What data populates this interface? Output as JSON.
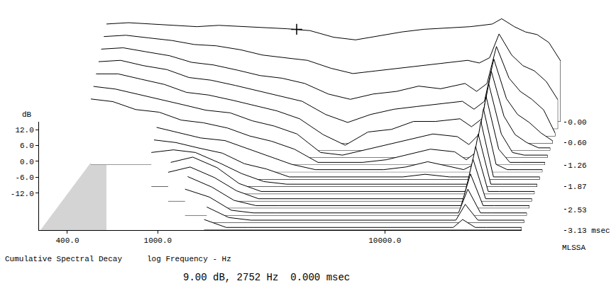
{
  "chart_data": {
    "type": "waterfall",
    "title": "Cumulative Spectral Decay",
    "xlabel": "log Frequency - Hz",
    "ylabel": "dB",
    "readout": "9.00 dB, 2752 Hz  0.000 msec",
    "annotation": "MLSSA",
    "log": "x",
    "grid": false,
    "color": "#000000",
    "xlim": [
      300,
      40000
    ],
    "xticks": [
      {
        "value": 400,
        "label": "400.0"
      },
      {
        "value": 1000,
        "label": "1000.0"
      },
      {
        "value": 10000,
        "label": "10000.0"
      }
    ],
    "ylim": [
      -26,
      15
    ],
    "yticks": [
      {
        "value": 12,
        "label": "12.0"
      },
      {
        "value": 6,
        "label": "6.0"
      },
      {
        "value": 0,
        "label": "0.0"
      },
      {
        "value": -6,
        "label": "-6.0"
      },
      {
        "value": -12,
        "label": "-12.0"
      }
    ],
    "zlim": [
      0,
      3.13
    ],
    "zticks": [
      {
        "value": 0,
        "label": "0.00"
      },
      {
        "value": 0.6,
        "label": "0.60"
      },
      1.26,
      1.87,
      2.53,
      {
        "value": 3.13,
        "label": "3.13 msec"
      }
    ],
    "cursor": {
      "x": 2752,
      "y": 9.0,
      "time": 0
    },
    "x": [
      400,
      500,
      630,
      800,
      1000,
      1250,
      1600,
      2000,
      2500,
      3150,
      4000,
      5000,
      6300,
      8000,
      10000,
      12500,
      16000,
      18000,
      20000,
      22000,
      25000,
      28000,
      31500,
      35500,
      40000
    ],
    "slices": [
      {
        "time": 0,
        "values": [
          11,
          11.5,
          11,
          10.5,
          10,
          10.5,
          10,
          9.5,
          9.2,
          8.5,
          6,
          5,
          6.5,
          8,
          9,
          9.5,
          10,
          10.5,
          11,
          13,
          10,
          8,
          7,
          4,
          -3
        ]
      },
      {
        "time": 0.21,
        "values": [
          9,
          9.5,
          8.5,
          7.5,
          6,
          5.5,
          4,
          2,
          1,
          0,
          -3,
          -5,
          -4,
          -3,
          -2,
          -1,
          0,
          -1,
          1,
          10,
          2,
          -2,
          -4,
          -8,
          -15
        ]
      },
      {
        "time": 0.42,
        "values": [
          7,
          7.5,
          6,
          4.5,
          2,
          1,
          -1,
          -3,
          -4,
          -6,
          -10,
          -12,
          -10,
          -9,
          -7,
          -8,
          -6,
          -9,
          -6,
          8,
          -4,
          -9,
          -12,
          -16,
          -25
        ]
      },
      {
        "time": 0.63,
        "values": [
          5,
          5.5,
          3.5,
          2,
          -1,
          -2,
          -4,
          -6,
          -8,
          -10,
          -15,
          -18,
          -15,
          -13,
          -12,
          -11,
          -10,
          -13,
          -10,
          6,
          -9,
          -15,
          -18,
          -22,
          -25
        ]
      },
      {
        "time": 0.83,
        "values": [
          3,
          3,
          1,
          -1,
          -4,
          -5,
          -7,
          -9,
          -11,
          -14,
          -20,
          -24,
          -19,
          -18,
          -15,
          -15,
          -14,
          -17,
          -14,
          4,
          -13,
          -20,
          -23,
          -25,
          -25
        ]
      },
      {
        "time": 1.04,
        "values": [
          1,
          0,
          -2,
          -4,
          -6,
          -8,
          -9,
          -12,
          -14,
          -17,
          -24,
          -25,
          -23,
          -21,
          -19,
          -17,
          -18,
          -21,
          -17,
          2,
          -17,
          -24,
          -25,
          -25,
          -25
        ]
      },
      {
        "time": 1.25,
        "values": [
          -1,
          -2,
          -5,
          -6,
          -9,
          -10,
          -12,
          -15,
          -17,
          -20,
          -25,
          -25,
          -25,
          -24,
          -22,
          -20,
          -21,
          -24,
          -21,
          0,
          -20,
          -25,
          -25,
          -25,
          -25
        ]
      },
      {
        "time": 1.46,
        "values": [
          null,
          null,
          null,
          -9,
          -11,
          -13,
          -14,
          -17,
          -20,
          -23,
          -25,
          -25,
          -25,
          -25,
          -24,
          -22,
          -24,
          -25,
          -23,
          -2,
          -23,
          -25,
          -25,
          -25,
          -25
        ]
      },
      {
        "time": 1.67,
        "values": [
          null,
          null,
          null,
          -11,
          -12,
          -14,
          -16,
          -20,
          -22,
          -25,
          -25,
          -25,
          -25,
          -25,
          -25,
          -24,
          -25,
          -25,
          -25,
          -4,
          -25,
          -25,
          -25,
          -25,
          -25
        ]
      },
      {
        "time": 1.88,
        "values": [
          null,
          null,
          null,
          -13,
          -12,
          -13,
          -17,
          -21,
          -24,
          -25,
          -25,
          -25,
          -25,
          -25,
          -25,
          -25,
          -25,
          -25,
          -25,
          -6,
          -25,
          -25,
          -25,
          -25,
          -25
        ]
      },
      {
        "time": 2.09,
        "values": [
          null,
          null,
          null,
          null,
          -14,
          -12,
          -16,
          -22,
          -25,
          -25,
          -25,
          -25,
          -25,
          -25,
          -25,
          -25,
          -25,
          -25,
          -25,
          -8,
          -25,
          -25,
          -25,
          -25,
          -25
        ]
      },
      {
        "time": 2.3,
        "values": [
          null,
          null,
          null,
          null,
          -15,
          -13,
          -17,
          -22,
          -25,
          -25,
          -25,
          -25,
          -25,
          -25,
          -25,
          -25,
          -25,
          -25,
          -25,
          -10,
          -25,
          -25,
          -25,
          -25,
          -25
        ]
      },
      {
        "time": 2.5,
        "values": [
          null,
          null,
          null,
          null,
          null,
          -14,
          -18,
          -23,
          -25,
          -25,
          -25,
          -25,
          -25,
          -25,
          -25,
          -25,
          -25,
          -25,
          -25,
          -13,
          -25,
          -25,
          -25,
          -25,
          -25
        ]
      },
      {
        "time": 2.71,
        "values": [
          null,
          null,
          null,
          null,
          null,
          -16,
          -19,
          -24,
          -25,
          -25,
          -25,
          -25,
          -25,
          -25,
          -25,
          -25,
          -25,
          -25,
          -25,
          -16,
          -25,
          -25,
          -25,
          -25,
          -25
        ]
      },
      {
        "time": 2.92,
        "values": [
          null,
          null,
          null,
          null,
          null,
          null,
          -20,
          -24,
          -25,
          -25,
          -25,
          -25,
          -25,
          -25,
          -25,
          -25,
          -25,
          -25,
          -25,
          -19,
          -25,
          -25,
          -25,
          -25,
          -25
        ]
      },
      {
        "time": 3.13,
        "values": [
          null,
          null,
          null,
          null,
          null,
          null,
          -22,
          -25,
          -25,
          -25,
          -25,
          -25,
          -25,
          -25,
          -25,
          -25,
          -25,
          -25,
          -25,
          -22,
          -25,
          -25,
          -25,
          -25,
          -25
        ]
      }
    ]
  }
}
